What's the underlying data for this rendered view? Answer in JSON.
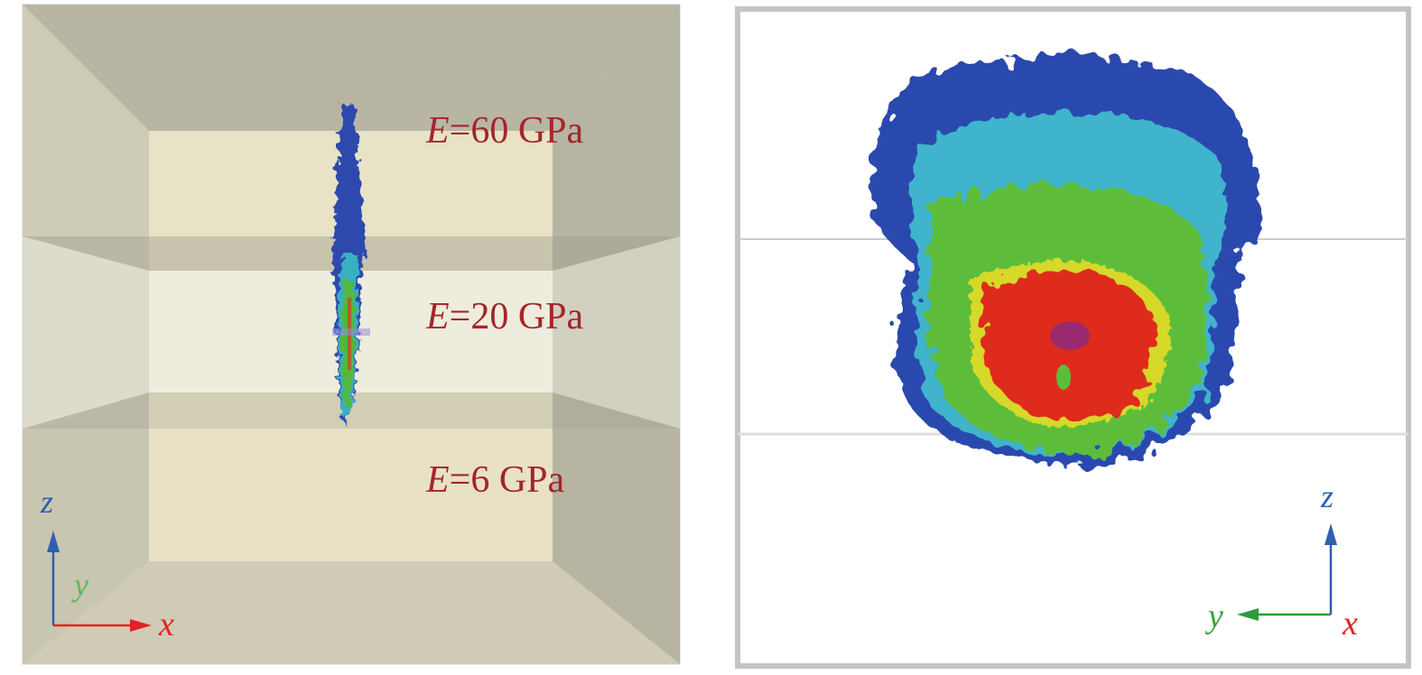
{
  "left_panel": {
    "layers": [
      {
        "label_var": "E",
        "label_value": "=60 GPa"
      },
      {
        "label_var": "E",
        "label_value": "=20 GPa"
      },
      {
        "label_var": "E",
        "label_value": "=6 GPa"
      }
    ],
    "axes": {
      "z": "z",
      "y": "y",
      "x": "x"
    }
  },
  "right_panel": {
    "axes": {
      "z": "z",
      "y": "y",
      "x": "x"
    }
  },
  "colors": {
    "label": "#a3262a",
    "axis_z": "#2f5fae",
    "axis_y": "#3aa23a",
    "axis_x": "#e02424",
    "fracture_low": "#2a3fa8",
    "fracture_mid": "#39b24a",
    "fracture_high": "#e0201c"
  }
}
